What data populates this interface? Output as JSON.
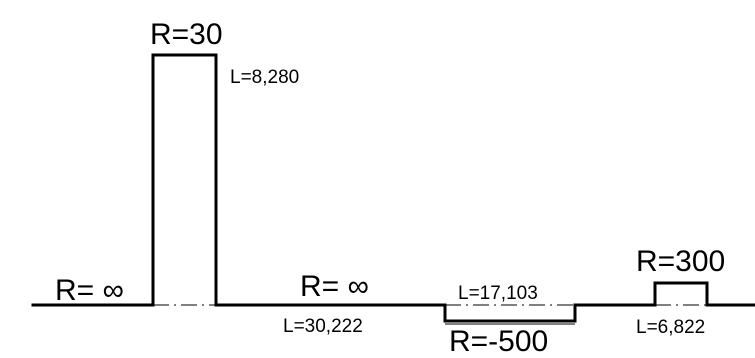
{
  "segments": [
    {
      "id": "straight-1",
      "radius": "R= ∞",
      "length": ""
    },
    {
      "id": "curve-1",
      "radius": "R=30",
      "length": "L=8,280"
    },
    {
      "id": "straight-2",
      "radius": "R= ∞",
      "length": "L=30,222"
    },
    {
      "id": "curve-2",
      "radius": "R=-500",
      "length": "L=17,103"
    },
    {
      "id": "curve-3",
      "radius": "R=300",
      "length": "L=6,822"
    }
  ]
}
